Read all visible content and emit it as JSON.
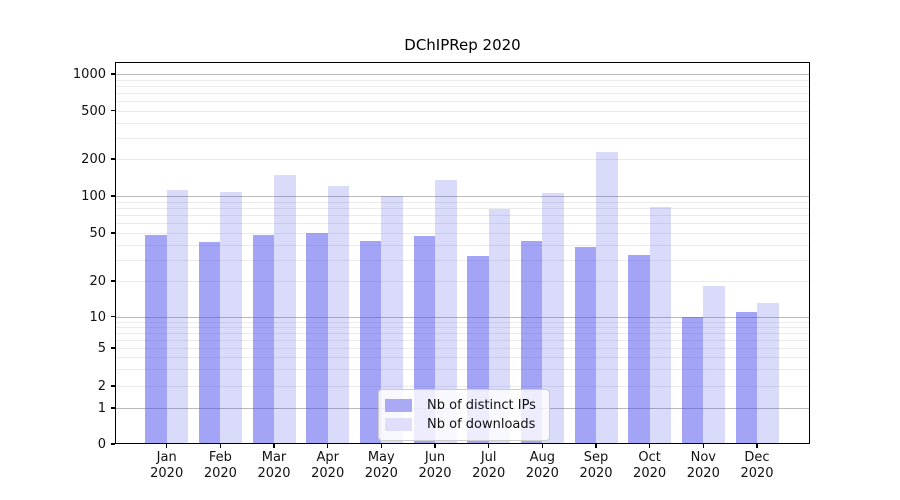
{
  "chart_data": {
    "type": "bar",
    "title": "DChIPRep 2020",
    "categories": [
      "Jan 2020",
      "Feb 2020",
      "Mar 2020",
      "Apr 2020",
      "May 2020",
      "Jun 2020",
      "Jul 2020",
      "Aug 2020",
      "Sep 2020",
      "Oct 2020",
      "Nov 2020",
      "Dec 2020"
    ],
    "series": [
      {
        "name": "Nb of distinct IPs",
        "values": [
          48,
          42,
          48,
          50,
          43,
          47,
          32,
          43,
          38,
          33,
          10,
          11
        ]
      },
      {
        "name": "Nb of downloads",
        "values": [
          113,
          107,
          147,
          120,
          100,
          135,
          79,
          106,
          230,
          81,
          18,
          13
        ]
      }
    ],
    "xlabel": "",
    "ylabel": "",
    "y_scale": "log-like (symlog, linear below 1)",
    "y_tick_labels": [
      "1000",
      "500",
      "200",
      "100",
      "50",
      "20",
      "10",
      "5",
      "2",
      "1",
      "0"
    ],
    "y_tick_values": [
      1000,
      500,
      200,
      100,
      50,
      20,
      10,
      5,
      2,
      1,
      0
    ],
    "ylim": [
      0,
      1250
    ],
    "grid": true,
    "legend_position": "lower center inside plot"
  },
  "colors": {
    "bar_distinct_ips": "rgba(81,81,237,0.52)",
    "bar_downloads": "rgba(80,80,235,0.21)",
    "legend_swatch_ips": "#a9a9f4",
    "legend_swatch_downloads": "#dfdffb",
    "grid_major": "#b9b9b9",
    "grid_minor": "#ebebeb",
    "spine": "#000000",
    "text": "#111111"
  }
}
